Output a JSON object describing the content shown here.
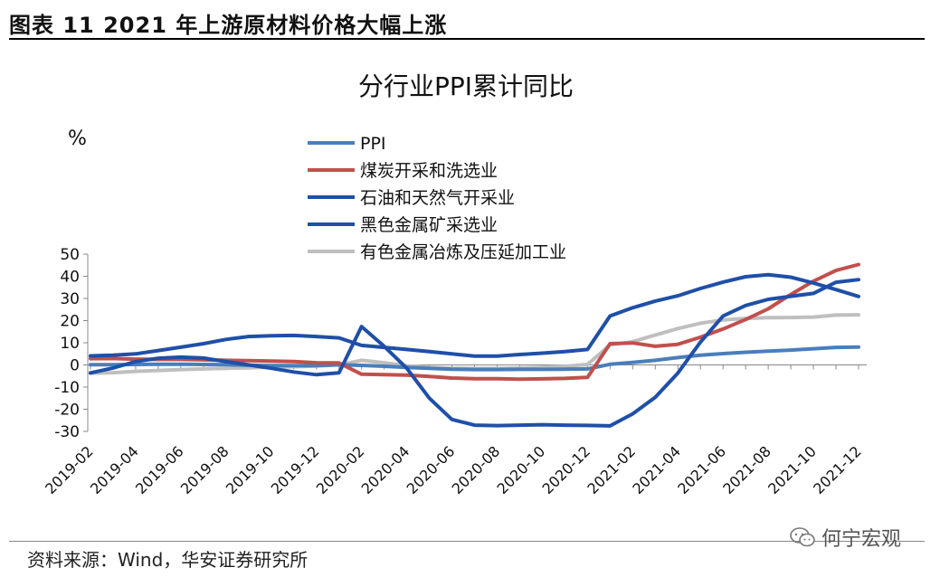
{
  "figure": {
    "title": "图表 11 2021 年上游原材料价格大幅上涨",
    "source": "资料来源：Wind，华安证券研究所",
    "watermark": "何宁宏观"
  },
  "chart_data": {
    "type": "line",
    "title": "分行业PPI累计同比",
    "ylabel": "%",
    "ylim": [
      -30,
      50
    ],
    "yticks": [
      -30,
      -20,
      -10,
      0,
      10,
      20,
      30,
      40,
      50
    ],
    "x": [
      "2019-02",
      "2019-03",
      "2019-04",
      "2019-05",
      "2019-06",
      "2019-07",
      "2019-08",
      "2019-09",
      "2019-10",
      "2019-11",
      "2019-12",
      "2020-01",
      "2020-02",
      "2020-03",
      "2020-04",
      "2020-05",
      "2020-06",
      "2020-07",
      "2020-08",
      "2020-09",
      "2020-10",
      "2020-11",
      "2020-12",
      "2021-01",
      "2021-02",
      "2021-03",
      "2021-04",
      "2021-05",
      "2021-06",
      "2021-07",
      "2021-08",
      "2021-09",
      "2021-10",
      "2021-11",
      "2021-12"
    ],
    "xticklabels": [
      "2019-02",
      "2019-04",
      "2019-06",
      "2019-08",
      "2019-10",
      "2019-12",
      "2020-02",
      "2020-04",
      "2020-06",
      "2020-08",
      "2020-10",
      "2020-12",
      "2021-02",
      "2021-04",
      "2021-06",
      "2021-08",
      "2021-10",
      "2021-12"
    ],
    "series": [
      {
        "name": "PPI",
        "color": "#4a7ebb",
        "values": [
          0.1,
          0.1,
          0.2,
          0.3,
          0.3,
          0.2,
          0.1,
          -0.1,
          -0.3,
          -0.3,
          -0.3,
          0.1,
          -0.2,
          -0.6,
          -1.1,
          -1.5,
          -1.9,
          -2.1,
          -2.1,
          -2.0,
          -2.0,
          -1.9,
          -1.8,
          0.3,
          1.1,
          2.1,
          3.3,
          4.4,
          5.1,
          5.7,
          6.2,
          6.7,
          7.3,
          7.9,
          8.1
        ]
      },
      {
        "name": "煤炭开采和洗选业",
        "color": "#c0504d",
        "values": [
          2.8,
          2.9,
          2.6,
          2.5,
          2.5,
          2.3,
          2.1,
          1.9,
          1.7,
          1.5,
          1.0,
          0.9,
          -4.2,
          -4.4,
          -4.6,
          -5.2,
          -5.9,
          -6.2,
          -6.2,
          -6.4,
          -6.3,
          -6.1,
          -5.6,
          9.6,
          9.9,
          8.4,
          9.3,
          12.5,
          16.2,
          20.5,
          25.3,
          31.8,
          37.8,
          42.6,
          45.3
        ]
      },
      {
        "name": "石油和天然气开采业",
        "color": "#1f4fa8",
        "values": [
          4.1,
          4.4,
          5.0,
          6.5,
          8.0,
          9.6,
          11.5,
          12.8,
          13.2,
          13.3,
          12.8,
          12.2,
          8.8,
          7.9,
          7.0,
          6.0,
          5.0,
          4.0,
          4.0,
          4.7,
          5.3,
          6.0,
          7.0,
          22.1,
          25.8,
          28.8,
          31.2,
          34.5,
          37.4,
          39.8,
          40.7,
          39.6,
          37.0,
          34.0,
          30.9
        ]
      },
      {
        "name": "黑色金属矿采选业",
        "color": "#1f4fa8",
        "values": [
          -3.6,
          -1.4,
          1.5,
          3.0,
          3.5,
          3.1,
          1.5,
          0.0,
          -1.5,
          -3.2,
          -4.4,
          -3.6,
          17.3,
          8.4,
          -1.5,
          -15.0,
          -24.6,
          -27.2,
          -27.4,
          -27.2,
          -27.0,
          -27.2,
          -27.3,
          -27.5,
          -22.1,
          -14.6,
          -3.7,
          10.3,
          22.1,
          26.8,
          29.6,
          31.0,
          32.3,
          37.3,
          38.5
        ]
      },
      {
        "name": "有色金属冶炼及压延加工业",
        "color": "#bfbfbf",
        "values": [
          -3.8,
          -3.5,
          -2.9,
          -2.5,
          -2.1,
          -1.8,
          -1.5,
          -1.3,
          -1.0,
          -0.8,
          -0.5,
          0.0,
          2.1,
          1.0,
          -0.4,
          -1.2,
          -1.5,
          -1.6,
          -1.6,
          -1.4,
          -1.1,
          -0.6,
          0.2,
          9.0,
          10.5,
          13.5,
          16.4,
          18.8,
          20.3,
          21.0,
          21.3,
          21.4,
          21.6,
          22.5,
          22.6
        ]
      }
    ]
  }
}
